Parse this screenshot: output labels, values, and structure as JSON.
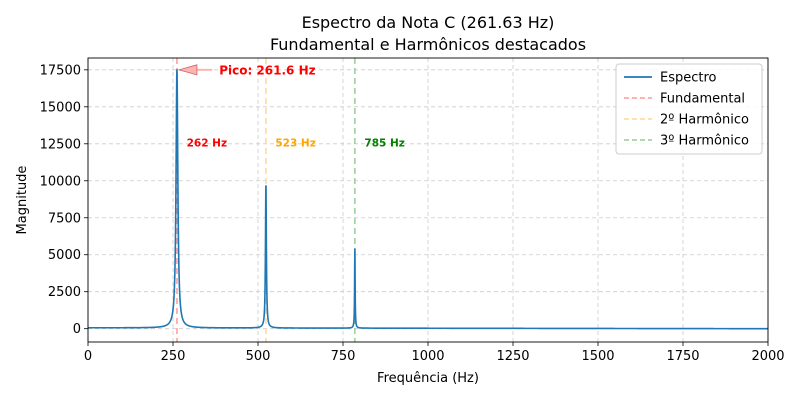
{
  "chart_data": {
    "type": "line",
    "title": "Espectro da Nota C (261.63 Hz)",
    "subtitle": "Fundamental e Harmônicos destacados",
    "xlabel": "Frequência (Hz)",
    "ylabel": "Magnitude",
    "xlim": [
      0,
      2000
    ],
    "ylim": [
      -900,
      18300
    ],
    "xticks": [
      0,
      250,
      500,
      750,
      1000,
      1250,
      1500,
      1750,
      2000
    ],
    "yticks": [
      0,
      2500,
      5000,
      7500,
      10000,
      12500,
      15000,
      17500
    ],
    "grid": true,
    "legend_position": "top-right",
    "series": [
      {
        "name": "Espectro",
        "color": "#1f77b4",
        "peaks": [
          {
            "x": 261.6,
            "y": 17500,
            "width": 3.2
          },
          {
            "x": 523.3,
            "y": 9800,
            "width": 1.6
          },
          {
            "x": 784.9,
            "y": 5450,
            "width": 0.9
          }
        ],
        "baseline_start": 60,
        "baseline_end": 0
      },
      {
        "name": "Fundamental",
        "color": "#ff9999",
        "x": 261.63,
        "style": "dashed"
      },
      {
        "name": "2º Harmônico",
        "color": "#ffd699",
        "x": 523.26,
        "style": "dashed"
      },
      {
        "name": "3º Harmônico",
        "color": "#99cc99",
        "x": 784.89,
        "style": "dashed"
      }
    ],
    "annotations": [
      {
        "text": "262 Hz",
        "x": 290,
        "y": 12600,
        "color": "#ff0000"
      },
      {
        "text": "523 Hz",
        "x": 551,
        "y": 12600,
        "color": "#ffa500"
      },
      {
        "text": "785 Hz",
        "x": 813,
        "y": 12600,
        "color": "#008000"
      }
    ],
    "peak_annotation": {
      "text": "Pico: 261.6 Hz",
      "x": 261.6,
      "y": 17500,
      "text_x": 380,
      "text_y": 17500,
      "color": "#ff0000",
      "arrow_color": "#ffb3b3"
    }
  }
}
